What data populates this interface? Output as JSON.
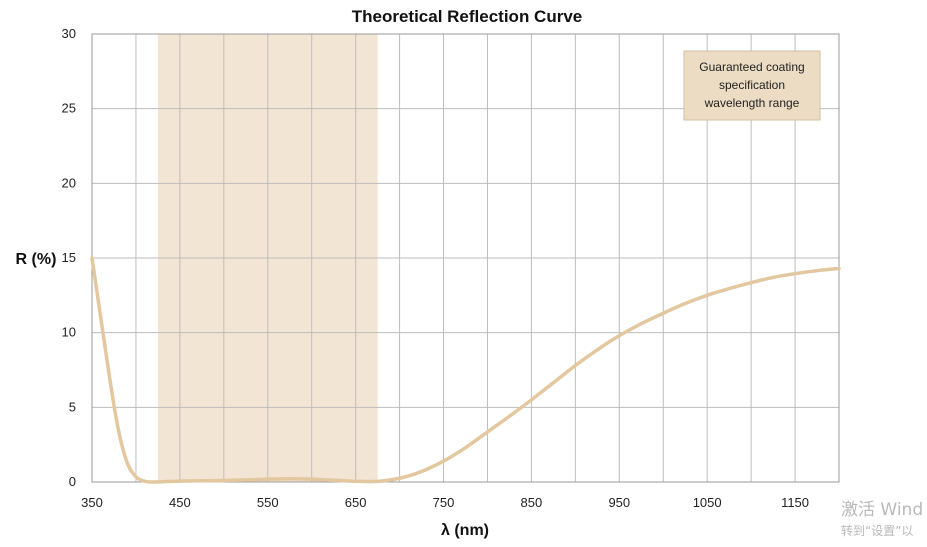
{
  "chart_data": {
    "type": "line",
    "title": "Theoretical Reflection Curve",
    "xlabel": "λ (nm)",
    "ylabel": "R (%)",
    "xlim": [
      350,
      1200
    ],
    "ylim": [
      0,
      30
    ],
    "x_ticks": [
      350,
      450,
      550,
      650,
      750,
      850,
      950,
      1050,
      1150
    ],
    "y_ticks": [
      0,
      5,
      10,
      15,
      20,
      25,
      30
    ],
    "grid": true,
    "highlight_band": {
      "x_range": [
        425,
        675
      ],
      "label_lines": [
        "Guaranteed coating",
        "specification",
        "wavelength range"
      ]
    },
    "series": [
      {
        "color": "#e2c79f",
        "x": [
          350,
          360,
          370,
          380,
          390,
          400,
          410,
          420,
          430,
          450,
          475,
          500,
          525,
          550,
          575,
          600,
          625,
          650,
          675,
          700,
          725,
          750,
          775,
          800,
          825,
          850,
          875,
          900,
          925,
          950,
          975,
          1000,
          1025,
          1050,
          1075,
          1100,
          1125,
          1150,
          1175,
          1200
        ],
        "y": [
          15.0,
          11.0,
          7.0,
          3.5,
          1.3,
          0.35,
          0.05,
          0.0,
          0.02,
          0.06,
          0.08,
          0.1,
          0.14,
          0.19,
          0.22,
          0.19,
          0.12,
          0.05,
          0.04,
          0.25,
          0.7,
          1.4,
          2.3,
          3.35,
          4.4,
          5.5,
          6.65,
          7.8,
          8.85,
          9.8,
          10.6,
          11.3,
          11.95,
          12.5,
          12.95,
          13.35,
          13.7,
          13.95,
          14.15,
          14.3
        ]
      }
    ]
  },
  "watermark": {
    "line1": "激活 Wind",
    "line2": "转到“设置”以"
  }
}
